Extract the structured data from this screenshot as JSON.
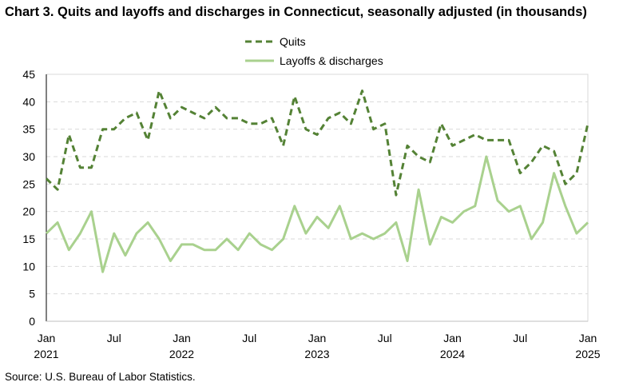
{
  "chart_data": {
    "type": "line",
    "title": "Chart 3. Quits and layoffs and discharges in Connecticut, seasonally adjusted (in thousands)",
    "source": "Source: U.S. Bureau of Labor Statistics.",
    "xlabel": "",
    "ylabel": "",
    "ylim": [
      0,
      45
    ],
    "yticks": [
      0,
      5,
      10,
      15,
      20,
      25,
      30,
      35,
      40,
      45
    ],
    "grid": true,
    "legend_position": "top-center",
    "x_start": "Jan 2021",
    "x_end": "Jan 2025",
    "xtick_labels": [
      {
        "month_index": 0,
        "label": "Jan",
        "year": "2021"
      },
      {
        "month_index": 6,
        "label": "Jul",
        "year": ""
      },
      {
        "month_index": 12,
        "label": "Jan",
        "year": "2022"
      },
      {
        "month_index": 18,
        "label": "Jul",
        "year": ""
      },
      {
        "month_index": 24,
        "label": "Jan",
        "year": "2023"
      },
      {
        "month_index": 30,
        "label": "Jul",
        "year": ""
      },
      {
        "month_index": 36,
        "label": "Jan",
        "year": "2024"
      },
      {
        "month_index": 42,
        "label": "Jul",
        "year": ""
      },
      {
        "month_index": 48,
        "label": "Jan",
        "year": "2025"
      }
    ],
    "series": [
      {
        "name": "Quits",
        "color": "#548235",
        "dashed": true,
        "values": [
          26,
          24,
          34,
          28,
          28,
          35,
          35,
          37,
          38,
          33,
          42,
          37,
          39,
          38,
          37,
          39,
          37,
          37,
          36,
          36,
          37,
          32,
          41,
          35,
          34,
          37,
          38,
          36,
          42,
          35,
          36,
          23,
          32,
          30,
          29,
          36,
          32,
          33,
          34,
          33,
          33,
          33,
          27,
          29,
          32,
          31,
          25,
          27,
          36
        ]
      },
      {
        "name": "Layoffs & discharges",
        "color": "#a9d18e",
        "dashed": false,
        "values": [
          16,
          18,
          13,
          16,
          20,
          9,
          16,
          12,
          16,
          18,
          15,
          11,
          14,
          14,
          13,
          13,
          15,
          13,
          16,
          14,
          13,
          15,
          21,
          16,
          19,
          17,
          21,
          15,
          16,
          15,
          16,
          18,
          11,
          24,
          14,
          19,
          18,
          20,
          21,
          30,
          22,
          20,
          21,
          15,
          18,
          27,
          21,
          16,
          18
        ]
      }
    ]
  }
}
